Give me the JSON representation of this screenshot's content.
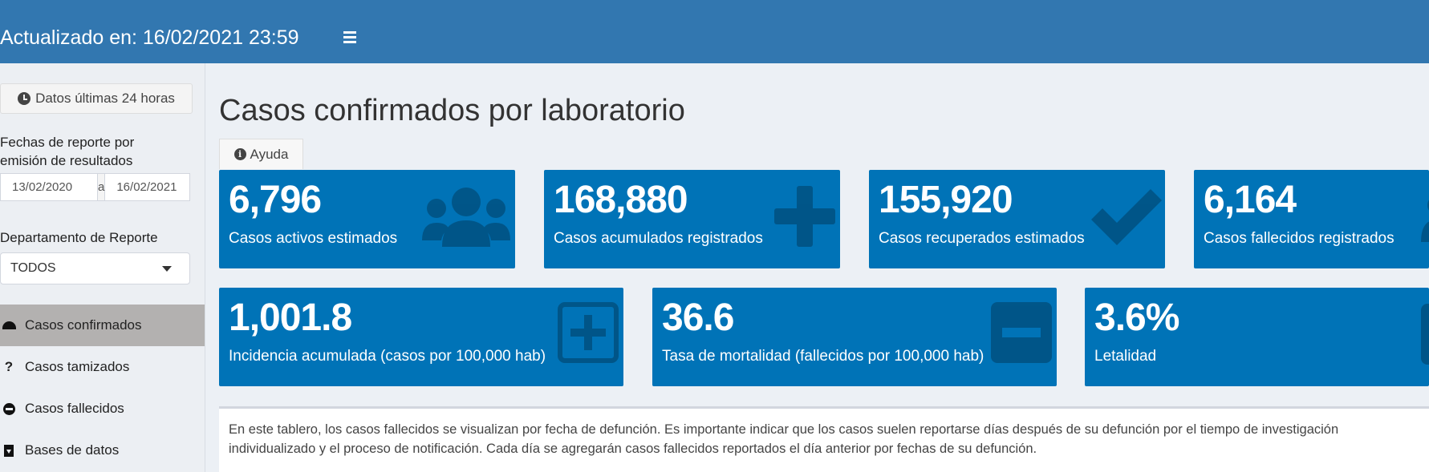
{
  "header": {
    "updated": "Actualizado en: 16/02/2021 23:59",
    "menu_icon": "hamburger-icon"
  },
  "sidebar": {
    "last24_label": "Datos últimas 24 horas",
    "dates_label_line1": "Fechas de reporte por",
    "dates_label_line2": "emisión de resultados",
    "date_from": "13/02/2020",
    "date_sep": "a",
    "date_to": "16/02/2021",
    "dept_label": "Departamento de Reporte",
    "dept_value": "TODOS",
    "nav": [
      {
        "label": "Casos confirmados",
        "icon": "dashboard-icon",
        "active": true
      },
      {
        "label": "Casos tamizados",
        "icon": "question-icon"
      },
      {
        "label": "Casos fallecidos",
        "icon": "minus-circle-icon"
      },
      {
        "label": "Bases de datos",
        "icon": "download-icon"
      }
    ]
  },
  "main": {
    "title": "Casos confirmados por laboratorio",
    "help_label": "Ayuda",
    "row1": [
      {
        "value": "6,796",
        "label": "Casos activos estimados",
        "icon": "users-icon"
      },
      {
        "value": "168,880",
        "label": "Casos acumulados registrados",
        "icon": "plus-icon"
      },
      {
        "value": "155,920",
        "label": "Casos recuperados estimados",
        "icon": "check-icon"
      },
      {
        "value": "6,164",
        "label": "Casos fallecidos registrados",
        "icon": "user-icon"
      }
    ],
    "row2": [
      {
        "value": "1,001.8",
        "label": "Incidencia acumulada (casos por 100,000 hab)",
        "icon": "plus-square-icon"
      },
      {
        "value": "36.6",
        "label": "Tasa de mortalidad (fallecidos por 100,000 hab)",
        "icon": "minus-square-icon"
      },
      {
        "value": "3.6%",
        "label": "Letalidad",
        "icon": "percent-icon"
      }
    ],
    "note": "En este tablero, los casos fallecidos se visualizan por fecha de defunción. Es importante indicar que los casos suelen reportarse días después de su defunción por el tiempo de investigación individualizado y el proceso de notificación. Cada día se agregarán casos fallecidos reportados el día anterior por fechas de su defunción."
  },
  "colors": {
    "header": "#3277b0",
    "box": "#0073b7",
    "active_nav": "#b3b1b0"
  }
}
